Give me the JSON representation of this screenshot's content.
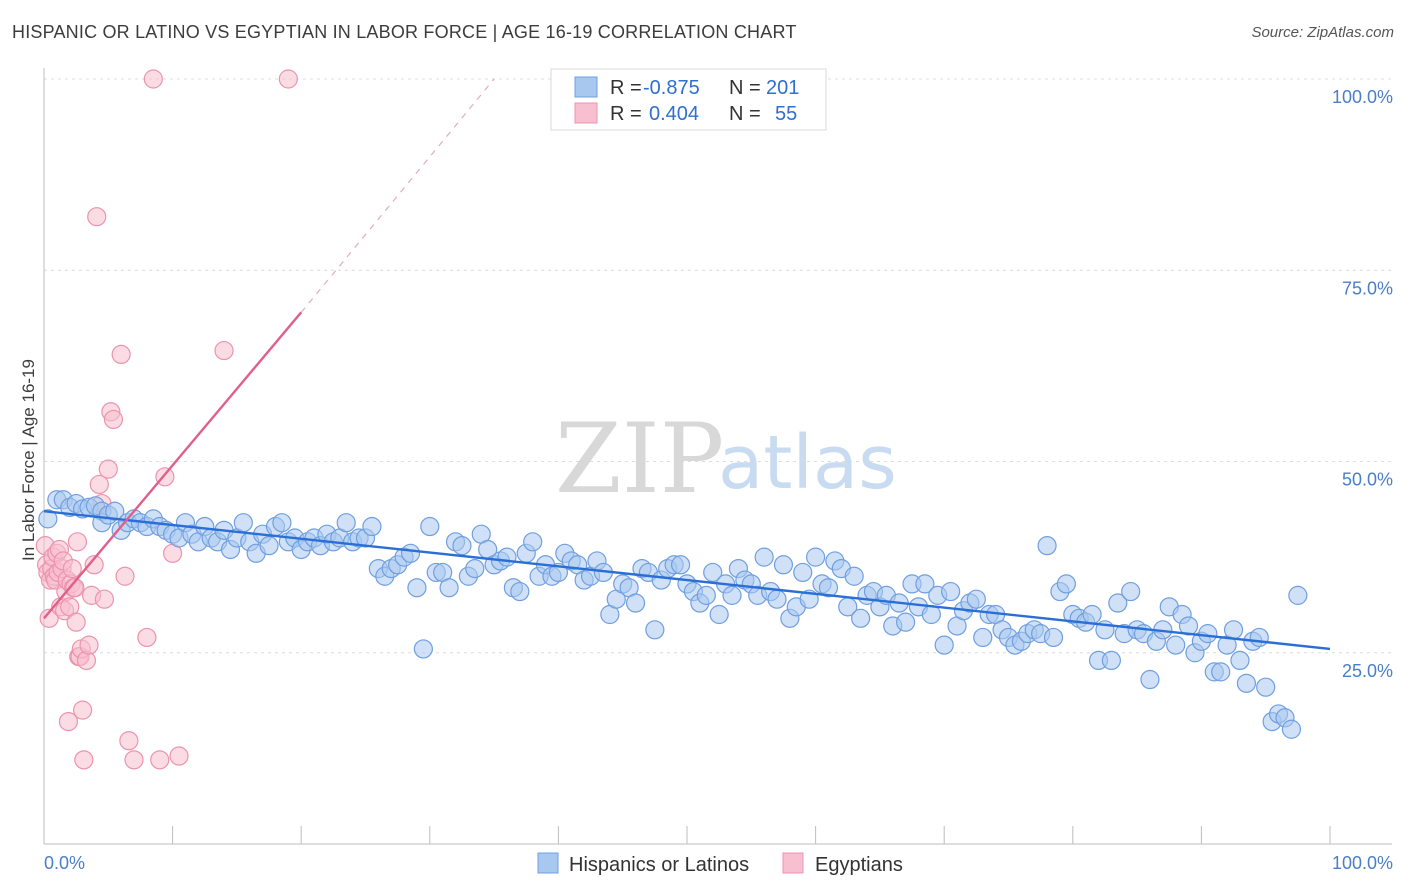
{
  "title": "HISPANIC OR LATINO VS EGYPTIAN IN LABOR FORCE | AGE 16-19 CORRELATION CHART",
  "source": "Source: ZipAtlas.com",
  "watermark": {
    "zip": "ZIP",
    "atlas": "atlas"
  },
  "colors": {
    "blue_fill": "#a9c8f0",
    "blue_stroke": "#6f9fe0",
    "blue_line": "#2a6fd6",
    "pink_fill": "#f7bfd0",
    "pink_stroke": "#ec93ae",
    "pink_line": "#e0608c",
    "tick_text": "#4a7ec8",
    "grid": "#dcdcdc"
  },
  "legend_top": [
    {
      "r_label": "R =",
      "r_value": "-0.875",
      "n_label": "N =",
      "n_value": "201",
      "color": "blue"
    },
    {
      "r_label": "R =",
      "r_value": "0.404",
      "n_label": "N =",
      "n_value": "55",
      "color": "pink"
    }
  ],
  "legend_bottom": [
    {
      "label": "Hispanics or Latinos",
      "color": "blue"
    },
    {
      "label": "Egyptians",
      "color": "pink"
    }
  ],
  "chart_data": {
    "type": "scatter",
    "ylabel": "In Labor Force | Age 16-19",
    "xlim": [
      0,
      100
    ],
    "ylim": [
      0,
      100
    ],
    "x_tick_labels": [
      {
        "value": 0,
        "label": "0.0%"
      },
      {
        "value": 100,
        "label": "100.0%"
      }
    ],
    "y_tick_labels": [
      {
        "value": 25,
        "label": "25.0%"
      },
      {
        "value": 50,
        "label": "50.0%"
      },
      {
        "value": 75,
        "label": "75.0%"
      },
      {
        "value": 100,
        "label": "100.0%"
      }
    ],
    "grid": true,
    "series": [
      {
        "name": "Hispanics or Latinos",
        "color": "blue",
        "trend": {
          "x": [
            0,
            100
          ],
          "y": [
            43.5,
            25.5
          ],
          "dashed_extension": false
        },
        "points": [
          [
            0.3,
            42.5
          ],
          [
            1,
            45
          ],
          [
            1.5,
            45
          ],
          [
            2,
            44
          ],
          [
            2.5,
            44.5
          ],
          [
            3,
            43.8
          ],
          [
            3.5,
            44
          ],
          [
            4,
            44.2
          ],
          [
            4.5,
            43.5
          ],
          [
            4.5,
            42
          ],
          [
            5,
            43
          ],
          [
            5.5,
            43.5
          ],
          [
            6,
            41
          ],
          [
            6.5,
            42
          ],
          [
            7,
            42.5
          ],
          [
            7.5,
            42
          ],
          [
            8,
            41.5
          ],
          [
            8.5,
            42.5
          ],
          [
            9,
            41.5
          ],
          [
            9.5,
            41
          ],
          [
            10,
            40.5
          ],
          [
            10.5,
            40
          ],
          [
            11,
            42
          ],
          [
            11.5,
            40.5
          ],
          [
            12,
            39.5
          ],
          [
            12.5,
            41.5
          ],
          [
            13,
            40
          ],
          [
            13.5,
            39.5
          ],
          [
            14,
            41
          ],
          [
            14.5,
            38.5
          ],
          [
            15,
            40
          ],
          [
            15.5,
            42
          ],
          [
            16,
            39.5
          ],
          [
            16.5,
            38
          ],
          [
            17,
            40.5
          ],
          [
            17.5,
            39
          ],
          [
            18,
            41.5
          ],
          [
            18.5,
            42
          ],
          [
            19,
            39.5
          ],
          [
            19.5,
            40
          ],
          [
            20,
            38.5
          ],
          [
            20.5,
            39.5
          ],
          [
            21,
            40
          ],
          [
            21.5,
            39
          ],
          [
            22,
            40.5
          ],
          [
            22.5,
            39.5
          ],
          [
            23,
            40
          ],
          [
            23.5,
            42
          ],
          [
            24,
            39.5
          ],
          [
            24.5,
            40
          ],
          [
            25,
            40
          ],
          [
            25.5,
            41.5
          ],
          [
            26,
            36
          ],
          [
            26.5,
            35
          ],
          [
            27,
            36
          ],
          [
            27.5,
            36.5
          ],
          [
            28,
            37.5
          ],
          [
            28.5,
            38
          ],
          [
            29,
            33.5
          ],
          [
            29.5,
            25.5
          ],
          [
            30,
            41.5
          ],
          [
            30.5,
            35.5
          ],
          [
            31,
            35.5
          ],
          [
            31.5,
            33.5
          ],
          [
            32,
            39.5
          ],
          [
            32.5,
            39
          ],
          [
            33,
            35
          ],
          [
            33.5,
            36
          ],
          [
            34,
            40.5
          ],
          [
            34.5,
            38.5
          ],
          [
            35,
            36.5
          ],
          [
            35.5,
            37
          ],
          [
            36,
            37.5
          ],
          [
            36.5,
            33.5
          ],
          [
            37,
            33
          ],
          [
            37.5,
            38
          ],
          [
            38,
            39.5
          ],
          [
            38.5,
            35
          ],
          [
            39,
            36.5
          ],
          [
            39.5,
            35
          ],
          [
            40,
            35.5
          ],
          [
            40.5,
            38
          ],
          [
            41,
            37
          ],
          [
            41.5,
            36.5
          ],
          [
            42,
            34.5
          ],
          [
            42.5,
            35
          ],
          [
            43,
            37
          ],
          [
            43.5,
            35.5
          ],
          [
            44,
            30
          ],
          [
            44.5,
            32
          ],
          [
            45,
            34
          ],
          [
            45.5,
            33.5
          ],
          [
            46,
            31.5
          ],
          [
            46.5,
            36
          ],
          [
            47,
            35.5
          ],
          [
            47.5,
            28
          ],
          [
            48,
            34.5
          ],
          [
            48.5,
            36
          ],
          [
            49,
            36.5
          ],
          [
            49.5,
            36.5
          ],
          [
            50,
            34
          ],
          [
            50.5,
            33
          ],
          [
            51,
            31.5
          ],
          [
            51.5,
            32.5
          ],
          [
            52,
            35.5
          ],
          [
            52.5,
            30
          ],
          [
            53,
            34
          ],
          [
            53.5,
            32.5
          ],
          [
            54,
            36
          ],
          [
            54.5,
            34.5
          ],
          [
            55,
            34
          ],
          [
            55.5,
            32.5
          ],
          [
            56,
            37.5
          ],
          [
            56.5,
            33
          ],
          [
            57,
            32
          ],
          [
            57.5,
            36.5
          ],
          [
            58,
            29.5
          ],
          [
            58.5,
            31
          ],
          [
            59,
            35.5
          ],
          [
            59.5,
            32
          ],
          [
            60,
            37.5
          ],
          [
            60.5,
            34
          ],
          [
            61,
            33.5
          ],
          [
            61.5,
            37
          ],
          [
            62,
            36
          ],
          [
            62.5,
            31
          ],
          [
            63,
            35
          ],
          [
            63.5,
            29.5
          ],
          [
            64,
            32.5
          ],
          [
            64.5,
            33
          ],
          [
            65,
            31
          ],
          [
            65.5,
            32.5
          ],
          [
            66,
            28.5
          ],
          [
            66.5,
            31.5
          ],
          [
            67,
            29
          ],
          [
            67.5,
            34
          ],
          [
            68,
            31
          ],
          [
            68.5,
            34
          ],
          [
            69,
            30
          ],
          [
            69.5,
            32.5
          ],
          [
            70,
            26
          ],
          [
            70.5,
            33
          ],
          [
            71,
            28.5
          ],
          [
            71.5,
            30.5
          ],
          [
            72,
            31.5
          ],
          [
            72.5,
            32
          ],
          [
            73,
            27
          ],
          [
            73.5,
            30
          ],
          [
            74,
            30
          ],
          [
            74.5,
            28
          ],
          [
            75,
            27
          ],
          [
            75.5,
            26
          ],
          [
            76,
            26.5
          ],
          [
            76.5,
            27.5
          ],
          [
            77,
            28
          ],
          [
            77.5,
            27.5
          ],
          [
            78,
            39
          ],
          [
            78.5,
            27
          ],
          [
            79,
            33
          ],
          [
            79.5,
            34
          ],
          [
            80,
            30
          ],
          [
            80.5,
            29.5
          ],
          [
            81,
            29
          ],
          [
            81.5,
            30
          ],
          [
            82,
            24
          ],
          [
            82.5,
            28
          ],
          [
            83,
            24
          ],
          [
            83.5,
            31.5
          ],
          [
            84,
            27.5
          ],
          [
            84.5,
            33
          ],
          [
            85,
            28
          ],
          [
            85.5,
            27.5
          ],
          [
            86,
            21.5
          ],
          [
            86.5,
            26.5
          ],
          [
            87,
            28
          ],
          [
            87.5,
            31
          ],
          [
            88,
            26
          ],
          [
            88.5,
            30
          ],
          [
            89,
            28.5
          ],
          [
            89.5,
            25
          ],
          [
            90,
            26.5
          ],
          [
            90.5,
            27.5
          ],
          [
            91,
            22.5
          ],
          [
            91.5,
            22.5
          ],
          [
            92,
            26
          ],
          [
            92.5,
            28
          ],
          [
            93,
            24
          ],
          [
            93.5,
            21
          ],
          [
            94,
            26.5
          ],
          [
            94.5,
            27
          ],
          [
            95,
            20.5
          ],
          [
            95.5,
            16
          ],
          [
            96,
            17
          ],
          [
            96.5,
            16.5
          ],
          [
            97,
            15
          ],
          [
            97.5,
            32.5
          ]
        ]
      },
      {
        "name": "Egyptians",
        "color": "pink",
        "trend": {
          "x": [
            0,
            20
          ],
          "y": [
            29.5,
            69.5
          ],
          "dashed_extension": true,
          "extension_to": {
            "x": 35,
            "y": 100
          }
        },
        "points": [
          [
            0.1,
            39
          ],
          [
            0.2,
            36.5
          ],
          [
            0.3,
            35.5
          ],
          [
            0.4,
            29.5
          ],
          [
            0.5,
            34.5
          ],
          [
            0.6,
            36
          ],
          [
            0.7,
            37.5
          ],
          [
            0.8,
            35
          ],
          [
            0.9,
            34.5
          ],
          [
            1.0,
            38
          ],
          [
            1.1,
            35.5
          ],
          [
            1.2,
            38.5
          ],
          [
            1.3,
            31
          ],
          [
            1.4,
            36
          ],
          [
            1.5,
            37
          ],
          [
            1.6,
            30.5
          ],
          [
            1.7,
            33
          ],
          [
            1.8,
            34.5
          ],
          [
            1.9,
            16
          ],
          [
            2.0,
            31
          ],
          [
            2.1,
            34
          ],
          [
            2.2,
            36
          ],
          [
            2.3,
            33.5
          ],
          [
            2.4,
            33.5
          ],
          [
            2.5,
            29
          ],
          [
            2.6,
            39.5
          ],
          [
            2.7,
            24.5
          ],
          [
            2.8,
            24.5
          ],
          [
            2.9,
            25.5
          ],
          [
            3.0,
            17.5
          ],
          [
            3.1,
            11
          ],
          [
            3.3,
            24
          ],
          [
            3.5,
            26
          ],
          [
            3.7,
            32.5
          ],
          [
            3.9,
            36.5
          ],
          [
            4.1,
            82
          ],
          [
            4.3,
            47
          ],
          [
            4.5,
            44.5
          ],
          [
            4.7,
            32
          ],
          [
            5.0,
            49
          ],
          [
            5.2,
            56.5
          ],
          [
            5.4,
            55.5
          ],
          [
            6.0,
            64
          ],
          [
            6.3,
            35
          ],
          [
            6.6,
            13.5
          ],
          [
            7.0,
            11
          ],
          [
            8.0,
            27
          ],
          [
            8.5,
            100
          ],
          [
            9.0,
            11
          ],
          [
            9.4,
            48
          ],
          [
            10,
            38
          ],
          [
            10.5,
            11.5
          ],
          [
            14,
            64.5
          ],
          [
            19,
            100
          ]
        ]
      }
    ]
  }
}
